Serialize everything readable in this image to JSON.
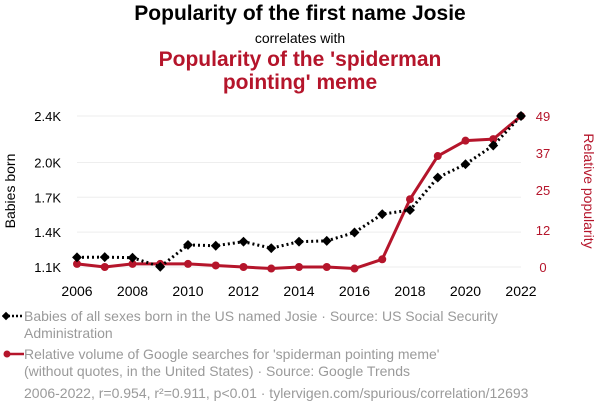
{
  "header": {
    "title": "Popularity of the first name Josie",
    "subtitle": "correlates with",
    "title2_line1": "Popularity of the 'spiderman",
    "title2_line2": "pointing' meme"
  },
  "legend": {
    "series1_line1": "Babies of all sexes born in the US named Josie · Source: US Social Security",
    "series1_line2": "Administration",
    "series2_line1": "Relative volume of Google searches for 'spiderman pointing meme'",
    "series2_line2": "(without quotes, in the United States) · Source: Google Trends"
  },
  "footer": {
    "text": "2006-2022, r=0.954, r²=0.911, p<0.01 · tylervigen.com/spurious/correlation/12693"
  },
  "colors": {
    "series1": "#000000",
    "series2": "#b5152b"
  },
  "chart_data": {
    "type": "line",
    "x": [
      2006,
      2007,
      2008,
      2009,
      2010,
      2011,
      2012,
      2013,
      2014,
      2015,
      2016,
      2017,
      2018,
      2019,
      2020,
      2021,
      2022
    ],
    "xlabel": "",
    "xticks": [
      2006,
      2008,
      2010,
      2012,
      2014,
      2016,
      2018,
      2020,
      2022
    ],
    "y_left": {
      "label": "Babies born",
      "ticks": [
        1100,
        1400,
        1700,
        2000,
        2400
      ],
      "tick_labels": [
        "1.1K",
        "1.4K",
        "1.7K",
        "2.0K",
        "2.4K"
      ],
      "range": [
        1100,
        2400
      ]
    },
    "y_right": {
      "label": "Relative popularity",
      "ticks": [
        0,
        12,
        25,
        37,
        49
      ],
      "tick_labels": [
        "0",
        "12",
        "25",
        "37",
        "49"
      ],
      "range": [
        0,
        49
      ]
    },
    "series": [
      {
        "axis": "left",
        "style": "dotted",
        "marker": "diamond",
        "values": [
          1183,
          1185,
          1180,
          1102,
          1290,
          1283,
          1318,
          1262,
          1318,
          1325,
          1397,
          1555,
          1590,
          1870,
          1985,
          2146,
          2400
        ]
      },
      {
        "axis": "right",
        "style": "solid",
        "marker": "circle",
        "values": [
          1,
          0,
          1,
          1,
          1,
          0.5,
          0,
          -0.5,
          0,
          0,
          -0.5,
          2.5,
          22,
          36,
          41,
          41.5,
          49
        ]
      }
    ],
    "grid": true,
    "legend_position": "bottom"
  }
}
